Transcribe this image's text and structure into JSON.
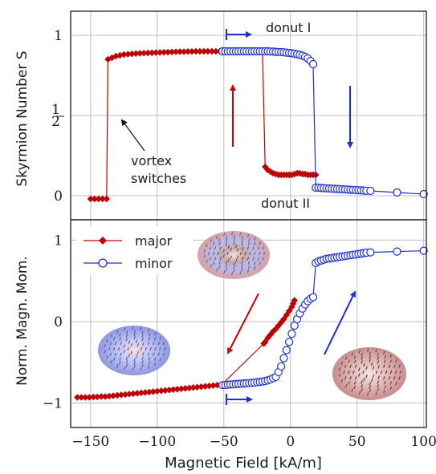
{
  "chart_data": [
    {
      "type": "line",
      "ylabel": "Skyrmion Number S",
      "xlim": [
        -165,
        102
      ],
      "ylim": [
        -0.15,
        1.15
      ],
      "yticks": [
        {
          "value": 0,
          "label": "0"
        },
        {
          "value": 0.5,
          "label": "1/2"
        },
        {
          "value": 1,
          "label": "1"
        }
      ],
      "grid": true,
      "annotations": {
        "donut_1": "donut I",
        "donut_2": "donut II",
        "vortex_line1": "vortex",
        "vortex_line2": "switches"
      },
      "series": [
        {
          "name": "major",
          "color": "#c00000",
          "marker": "diamond",
          "x": [
            -150,
            -147,
            -144,
            -141,
            -138,
            -137,
            -134,
            -131,
            -128,
            -125,
            -122,
            -119,
            -116,
            -113,
            -110,
            -107,
            -104,
            -101,
            -98,
            -95,
            -92,
            -89,
            -86,
            -83,
            -80,
            -77,
            -74,
            -71,
            -68,
            -65,
            -62,
            -59,
            -56,
            -53,
            -51,
            -48,
            -45,
            -42,
            -39,
            -36,
            -33,
            -30,
            -27,
            -24,
            -21,
            -19,
            -17,
            -15,
            -13,
            -11,
            -9,
            -7,
            -5,
            -3,
            -1,
            1,
            3,
            5,
            7,
            9,
            11,
            13,
            15,
            17,
            19
          ],
          "y": [
            -0.02,
            -0.02,
            -0.02,
            -0.02,
            -0.02,
            0.85,
            0.86,
            0.87,
            0.875,
            0.88,
            0.882,
            0.884,
            0.886,
            0.888,
            0.889,
            0.89,
            0.891,
            0.892,
            0.893,
            0.894,
            0.895,
            0.896,
            0.897,
            0.898,
            0.898,
            0.899,
            0.899,
            0.9,
            0.9,
            0.9,
            0.9,
            0.9,
            0.9,
            0.9,
            0.9,
            0.9,
            0.9,
            0.9,
            0.9,
            0.9,
            0.9,
            0.9,
            0.9,
            0.9,
            0.9,
            0.18,
            0.16,
            0.15,
            0.14,
            0.135,
            0.13,
            0.13,
            0.13,
            0.13,
            0.13,
            0.13,
            0.135,
            0.14,
            0.14,
            0.135,
            0.135,
            0.13,
            0.13,
            0.13,
            0.13
          ]
        },
        {
          "name": "minor",
          "color": "#1f2fd6",
          "marker": "circle",
          "x": [
            -51,
            -49,
            -47,
            -45,
            -43,
            -41,
            -39,
            -37,
            -35,
            -33,
            -31,
            -29,
            -27,
            -25,
            -23,
            -21,
            -19,
            -17,
            -15,
            -13,
            -11,
            -9,
            -7,
            -5,
            -3,
            -1,
            1,
            3,
            5,
            7,
            9,
            11,
            13,
            15,
            17,
            19,
            21,
            23,
            25,
            27,
            29,
            31,
            33,
            35,
            37,
            39,
            41,
            43,
            45,
            47,
            49,
            51,
            53,
            55,
            57,
            60,
            80,
            100
          ],
          "y": [
            0.9,
            0.9,
            0.9,
            0.9,
            0.9,
            0.9,
            0.9,
            0.9,
            0.9,
            0.9,
            0.9,
            0.9,
            0.9,
            0.9,
            0.9,
            0.9,
            0.9,
            0.9,
            0.899,
            0.898,
            0.897,
            0.896,
            0.895,
            0.894,
            0.892,
            0.89,
            0.888,
            0.885,
            0.882,
            0.878,
            0.873,
            0.866,
            0.856,
            0.84,
            0.82,
            0.05,
            0.05,
            0.048,
            0.047,
            0.046,
            0.045,
            0.044,
            0.043,
            0.042,
            0.041,
            0.04,
            0.039,
            0.038,
            0.037,
            0.036,
            0.035,
            0.034,
            0.033,
            0.032,
            0.031,
            0.03,
            0.02,
            0.01
          ]
        }
      ]
    },
    {
      "type": "line",
      "xlabel": "Magnetic Field [kA/m]",
      "ylabel": "Norm. Magn. Mom.",
      "xlim": [
        -165,
        102
      ],
      "ylim": [
        -1.3,
        1.25
      ],
      "xticks": [
        -150,
        -100,
        -50,
        0,
        50,
        100
      ],
      "yticks": [
        {
          "value": -1,
          "label": "−1"
        },
        {
          "value": 0,
          "label": "0"
        },
        {
          "value": 1,
          "label": "1"
        }
      ],
      "xtick_labels": [
        "−150",
        "−100",
        "−50",
        "0",
        "50",
        "100"
      ],
      "grid": true,
      "legend": {
        "placement": "top-left",
        "entries": [
          "major",
          "minor"
        ]
      },
      "series": [
        {
          "name": "major",
          "color": "#c00000",
          "marker": "diamond",
          "x": [
            -160,
            -157,
            -154,
            -151,
            -148,
            -145,
            -142,
            -139,
            -136,
            -133,
            -130,
            -127,
            -124,
            -121,
            -118,
            -115,
            -112,
            -109,
            -106,
            -103,
            -100,
            -97,
            -94,
            -91,
            -88,
            -85,
            -82,
            -79,
            -76,
            -73,
            -70,
            -67,
            -64,
            -61,
            -58,
            -55,
            -52,
            -20,
            -19,
            -17,
            -15,
            -13,
            -11,
            -9,
            -7,
            -5,
            -3,
            -1,
            1,
            2,
            3
          ],
          "y": [
            -0.93,
            -0.93,
            -0.93,
            -0.93,
            -0.925,
            -0.925,
            -0.92,
            -0.92,
            -0.915,
            -0.91,
            -0.905,
            -0.9,
            -0.895,
            -0.89,
            -0.885,
            -0.88,
            -0.875,
            -0.87,
            -0.865,
            -0.86,
            -0.855,
            -0.85,
            -0.845,
            -0.84,
            -0.835,
            -0.83,
            -0.825,
            -0.82,
            -0.815,
            -0.81,
            -0.805,
            -0.8,
            -0.795,
            -0.79,
            -0.785,
            -0.78,
            -0.78,
            -0.27,
            -0.25,
            -0.2,
            -0.16,
            -0.12,
            -0.09,
            -0.05,
            -0.01,
            0.03,
            0.08,
            0.13,
            0.18,
            0.22,
            0.26
          ]
        },
        {
          "name": "minor",
          "color": "#1f2fd6",
          "marker": "circle",
          "x": [
            -51,
            -49,
            -47,
            -45,
            -43,
            -41,
            -39,
            -37,
            -35,
            -33,
            -31,
            -29,
            -27,
            -25,
            -23,
            -21,
            -19,
            -17,
            -15,
            -13,
            -11,
            -9,
            -7,
            -5,
            -3,
            -1,
            1,
            3,
            5,
            7,
            9,
            11,
            13,
            15,
            17,
            19,
            21,
            23,
            25,
            27,
            29,
            31,
            33,
            35,
            37,
            39,
            41,
            43,
            45,
            47,
            49,
            51,
            53,
            55,
            57,
            60,
            80,
            100
          ],
          "y": [
            -0.78,
            -0.778,
            -0.775,
            -0.772,
            -0.77,
            -0.767,
            -0.765,
            -0.762,
            -0.76,
            -0.757,
            -0.754,
            -0.751,
            -0.748,
            -0.744,
            -0.74,
            -0.735,
            -0.73,
            -0.72,
            -0.71,
            -0.695,
            -0.68,
            -0.62,
            -0.55,
            -0.45,
            -0.35,
            -0.25,
            -0.15,
            -0.05,
            0.03,
            0.1,
            0.16,
            0.21,
            0.25,
            0.28,
            0.3,
            0.72,
            0.74,
            0.75,
            0.76,
            0.77,
            0.775,
            0.78,
            0.785,
            0.79,
            0.795,
            0.8,
            0.805,
            0.81,
            0.815,
            0.82,
            0.825,
            0.83,
            0.835,
            0.84,
            0.845,
            0.85,
            0.86,
            0.87
          ]
        }
      ]
    }
  ]
}
